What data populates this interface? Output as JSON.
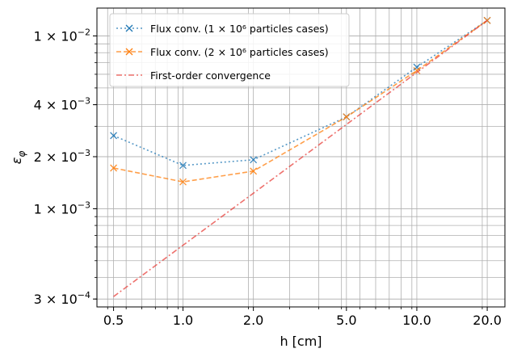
{
  "chart_data": {
    "type": "line",
    "xscale": "log",
    "yscale": "log",
    "xlabel": "h [cm]",
    "ylabel": "ε_φ",
    "xlim": [
      0.45,
      25
    ],
    "ylim": [
      0.00027,
      0.0145
    ],
    "grid": "both-major-minor",
    "legend_position": "top-left",
    "x_ticks": [
      {
        "value": 0.53,
        "label": "0.5"
      },
      {
        "value": 1.05,
        "label": "1.0"
      },
      {
        "value": 2.1,
        "label": "2.0"
      },
      {
        "value": 5.25,
        "label": "5.0"
      },
      {
        "value": 10.5,
        "label": "10.0"
      },
      {
        "value": 21,
        "label": "20.0"
      }
    ],
    "y_ticks": [
      {
        "value": 0.0003,
        "label": "3 × 10",
        "exp": "−4"
      },
      {
        "value": 0.001,
        "label": "1 × 10",
        "exp": "−3"
      },
      {
        "value": 0.002,
        "label": "2 × 10",
        "exp": "−3"
      },
      {
        "value": 0.004,
        "label": "4 × 10",
        "exp": "−3"
      },
      {
        "value": 0.01,
        "label": "1 × 10",
        "exp": "−2"
      }
    ],
    "series": [
      {
        "name": "Flux conv. (1 × 10⁶ particles cases)",
        "color": "#1f77b4",
        "style": "dotted",
        "marker": "x",
        "x": [
          0.53,
          1.05,
          2.1,
          5.25,
          10.5,
          21
        ],
        "y": [
          0.00265,
          0.00178,
          0.00192,
          0.0034,
          0.0066,
          0.0123
        ]
      },
      {
        "name": "Flux conv. (2 × 10⁶ particles cases)",
        "color": "#ff7f0e",
        "style": "dashed",
        "marker": "x",
        "x": [
          0.53,
          1.05,
          2.1,
          5.25,
          10.5,
          21
        ],
        "y": [
          0.00172,
          0.00143,
          0.00165,
          0.0034,
          0.0063,
          0.0123
        ]
      },
      {
        "name": "First-order convergence",
        "color": "#e8413c",
        "style": "dashdot",
        "marker": "none",
        "x": [
          0.53,
          21
        ],
        "y": [
          0.00031,
          0.0123
        ]
      }
    ]
  }
}
